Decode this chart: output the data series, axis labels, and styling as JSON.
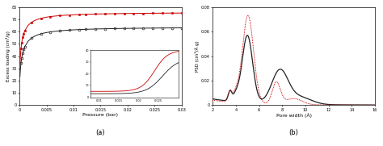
{
  "left_xlabel": "Pressure (bar)",
  "left_ylabel": "Excess loading (cm³/g)",
  "left_xlim": [
    0,
    0.03
  ],
  "left_ylim": [
    0,
    80
  ],
  "left_xticks": [
    0,
    0.005,
    0.01,
    0.015,
    0.02,
    0.025,
    0.03
  ],
  "left_ytick_labels": [
    "0",
    "10",
    "20",
    "30",
    "40",
    "50",
    "60",
    "70",
    "80"
  ],
  "left_yticks": [
    0,
    10,
    20,
    30,
    40,
    50,
    60,
    70,
    80
  ],
  "left_xtick_labels": [
    "0",
    "0.005",
    "0.01",
    "0.015",
    "0.02",
    "0.025",
    "0.03"
  ],
  "label_a": "(a)",
  "label_b": "(b)",
  "right_xlabel": "Pore width (Å)",
  "right_ylabel": "PSD (cm³/Å g)",
  "right_xlim": [
    2,
    16
  ],
  "right_ylim": [
    0,
    0.08
  ],
  "right_xticks": [
    2,
    4,
    6,
    8,
    10,
    12,
    14,
    16
  ],
  "right_xtick_labels": [
    "2",
    "4",
    "6",
    "8",
    "10",
    "12",
    "14",
    "16"
  ],
  "right_yticks": [
    0,
    0.02,
    0.04,
    0.06,
    0.08
  ],
  "right_ytick_labels": [
    "0",
    "0.02",
    "0.04",
    "0.06",
    "0.08"
  ],
  "bg_color": "#ffffff",
  "red_color": "#cc0000",
  "black_color": "#222222"
}
